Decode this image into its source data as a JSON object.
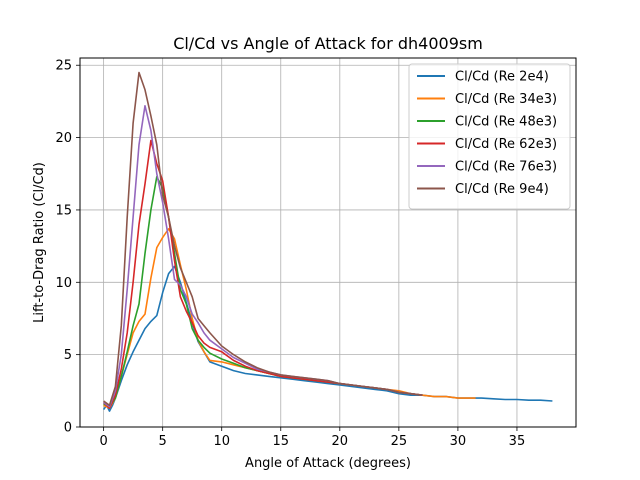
{
  "chart_data": {
    "type": "line",
    "title": "Cl/Cd vs Angle of Attack for dh4009sm",
    "xlabel": "Angle of Attack (degrees)",
    "ylabel": "Lift-to-Drag Ratio (Cl/Cd)",
    "xlim": [
      -2,
      40
    ],
    "ylim": [
      0,
      25.5
    ],
    "xticks": [
      0,
      5,
      10,
      15,
      20,
      25,
      30,
      35
    ],
    "yticks": [
      0,
      5,
      10,
      15,
      20,
      25
    ],
    "grid": true,
    "legend_position": "top-right",
    "series": [
      {
        "name": "Cl/Cd (Re 2e4)",
        "color": "#1f77b4",
        "x": [
          0,
          0.25,
          0.5,
          0.75,
          1.0,
          1.5,
          2.0,
          2.5,
          3.0,
          3.5,
          4.0,
          4.5,
          5.0,
          5.5,
          6.0,
          6.5,
          7.0,
          7.5,
          8.0,
          8.5,
          9.0,
          10,
          11,
          12,
          13,
          14,
          15,
          16,
          17,
          18,
          19,
          20,
          21,
          22,
          23,
          24,
          25,
          26,
          27,
          28,
          29,
          30,
          31,
          32,
          33,
          34,
          35,
          36,
          37,
          38
        ],
        "y": [
          1.2,
          1.5,
          1.1,
          1.5,
          2.0,
          3.2,
          4.3,
          5.2,
          6.0,
          6.8,
          7.3,
          7.7,
          9.3,
          10.6,
          11.1,
          10.0,
          8.6,
          7.2,
          5.9,
          5.2,
          4.5,
          4.2,
          3.9,
          3.7,
          3.6,
          3.5,
          3.4,
          3.3,
          3.2,
          3.1,
          3.0,
          2.9,
          2.8,
          2.7,
          2.6,
          2.5,
          2.3,
          2.2,
          2.2,
          2.1,
          2.1,
          2.0,
          2.0,
          2.0,
          1.95,
          1.9,
          1.9,
          1.85,
          1.85,
          1.8
        ]
      },
      {
        "name": "Cl/Cd (Re 34e3)",
        "color": "#ff7f0e",
        "x": [
          0,
          0.5,
          1.0,
          1.5,
          2.0,
          2.5,
          3.0,
          3.5,
          4.0,
          4.5,
          5.0,
          5.5,
          6.0,
          6.5,
          7.0,
          7.5,
          8.0,
          8.5,
          9.0,
          10,
          11,
          12,
          13,
          14,
          15,
          16,
          17,
          18,
          19,
          20,
          21,
          22,
          23,
          24,
          25,
          26,
          27,
          28,
          29,
          30,
          31,
          31.5
        ],
        "y": [
          1.5,
          1.3,
          2.0,
          3.5,
          5.0,
          6.5,
          7.3,
          7.8,
          10.3,
          12.4,
          13.1,
          13.7,
          13.0,
          11.2,
          9.5,
          7.5,
          6.0,
          5.2,
          4.6,
          4.5,
          4.3,
          4.1,
          3.9,
          3.7,
          3.5,
          3.4,
          3.3,
          3.2,
          3.1,
          3.0,
          2.9,
          2.8,
          2.7,
          2.6,
          2.5,
          2.3,
          2.2,
          2.1,
          2.1,
          2.0,
          2.0,
          2.0
        ]
      },
      {
        "name": "Cl/Cd (Re 48e3)",
        "color": "#2ca02c",
        "x": [
          0,
          0.5,
          1.0,
          1.5,
          2.0,
          2.5,
          3.0,
          3.5,
          4.0,
          4.5,
          5.0,
          5.5,
          6.0,
          6.5,
          7.0,
          7.5,
          8.0,
          8.5,
          9.0,
          10,
          11,
          12,
          13,
          14,
          15,
          16,
          17,
          18,
          19,
          20,
          21,
          22,
          23,
          24,
          25,
          26,
          27
        ],
        "y": [
          1.6,
          1.4,
          2.0,
          3.5,
          5.2,
          7.0,
          8.5,
          12.0,
          15.0,
          17.3,
          16.5,
          14.5,
          12.0,
          9.5,
          8.5,
          6.8,
          6.0,
          5.5,
          5.1,
          4.7,
          4.4,
          4.1,
          3.9,
          3.7,
          3.5,
          3.4,
          3.3,
          3.2,
          3.1,
          3.0,
          2.9,
          2.8,
          2.7,
          2.6,
          2.4,
          2.3,
          2.2
        ]
      },
      {
        "name": "Cl/Cd (Re 62e3)",
        "color": "#d62728",
        "x": [
          0,
          0.5,
          1.0,
          1.5,
          2.0,
          2.5,
          3.0,
          3.5,
          4.0,
          4.5,
          5.0,
          5.5,
          6.0,
          6.5,
          7.0,
          7.5,
          8.0,
          8.5,
          9.0,
          10,
          11,
          12,
          13,
          14,
          15,
          16,
          17,
          18,
          19,
          20,
          21,
          22,
          23,
          24,
          25,
          26,
          27
        ],
        "y": [
          1.7,
          1.3,
          2.2,
          4.0,
          6.5,
          10.0,
          14.0,
          16.8,
          19.8,
          18.2,
          17.0,
          14.5,
          11.5,
          9.0,
          8.0,
          7.2,
          6.3,
          5.8,
          5.5,
          5.2,
          4.6,
          4.2,
          3.9,
          3.7,
          3.5,
          3.4,
          3.3,
          3.2,
          3.1,
          3.0,
          2.9,
          2.8,
          2.7,
          2.6,
          2.4,
          2.3,
          2.2
        ]
      },
      {
        "name": "Cl/Cd (Re 76e3)",
        "color": "#9467bd",
        "x": [
          0,
          0.5,
          1.0,
          1.5,
          2.0,
          2.5,
          3.0,
          3.5,
          4.0,
          4.5,
          5.0,
          5.5,
          6.0,
          6.5,
          7.0,
          7.5,
          8.0,
          8.5,
          9.0,
          10,
          11,
          12,
          13,
          14,
          15,
          16,
          17,
          18,
          19,
          20,
          21,
          22,
          23,
          24,
          25,
          26,
          27
        ],
        "y": [
          1.7,
          1.4,
          2.5,
          5.0,
          9.5,
          14.5,
          19.5,
          22.2,
          20.5,
          17.5,
          15.5,
          13.0,
          10.2,
          9.8,
          9.0,
          7.8,
          7.2,
          6.5,
          6.0,
          5.4,
          4.8,
          4.4,
          4.0,
          3.8,
          3.6,
          3.5,
          3.4,
          3.3,
          3.2,
          3.0,
          2.9,
          2.8,
          2.7,
          2.6,
          2.4,
          2.3,
          2.2
        ]
      },
      {
        "name": "Cl/Cd (Re 9e4)",
        "color": "#8c564b",
        "x": [
          0,
          0.5,
          1.0,
          1.5,
          2.0,
          2.5,
          3.0,
          3.5,
          4.0,
          4.5,
          5.0,
          5.5,
          6.0,
          6.5,
          7.0,
          7.5,
          8.0,
          8.5,
          9.0,
          10,
          11,
          12,
          13,
          14,
          15,
          16,
          17,
          18,
          19,
          20,
          21,
          22,
          23,
          24,
          25,
          26,
          27
        ],
        "y": [
          1.8,
          1.5,
          2.8,
          7.0,
          14.5,
          21.0,
          24.5,
          23.3,
          21.5,
          19.5,
          16.0,
          14.5,
          12.5,
          11.0,
          10.0,
          9.0,
          7.5,
          7.0,
          6.5,
          5.6,
          5.0,
          4.5,
          4.1,
          3.8,
          3.6,
          3.5,
          3.4,
          3.3,
          3.2,
          3.0,
          2.9,
          2.8,
          2.7,
          2.6,
          2.4,
          2.3,
          2.2
        ]
      }
    ]
  }
}
